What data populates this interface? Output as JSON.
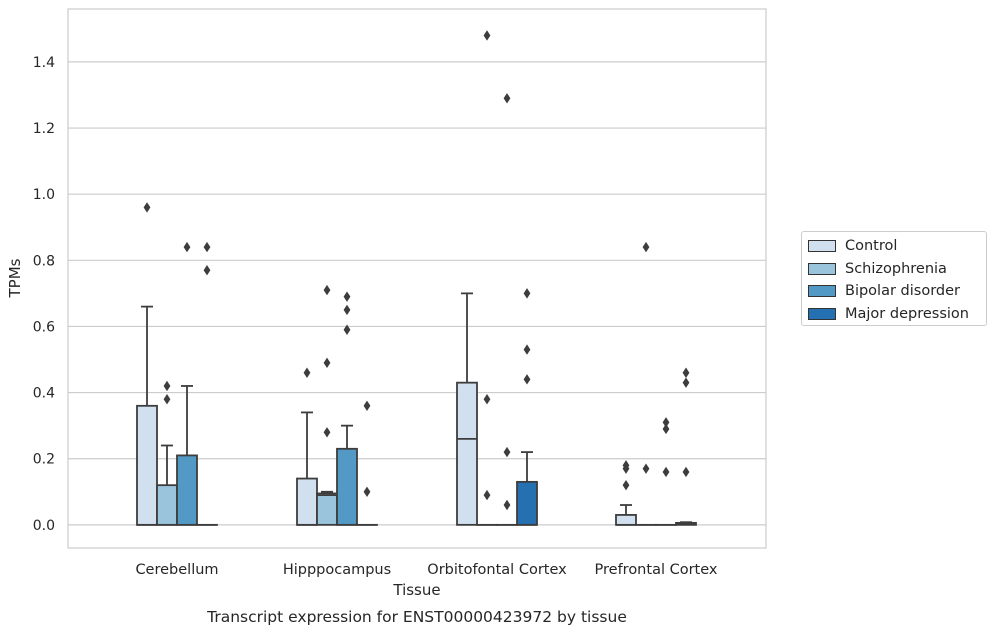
{
  "chart_data": {
    "type": "box",
    "title": "Transcript expression for ENST00000423972 by tissue",
    "xlabel": "Tissue",
    "ylabel": "TPMs",
    "ylim": [
      -0.07,
      1.56
    ],
    "yticks": [
      0.0,
      0.2,
      0.4,
      0.6,
      0.8,
      1.0,
      1.2,
      1.4
    ],
    "ytick_labels": [
      "0.0",
      "0.2",
      "0.4",
      "0.6",
      "0.8",
      "1.0",
      "1.2",
      "1.4"
    ],
    "grid": true,
    "legend_position": "right",
    "categories": [
      "Cerebellum",
      "Hipppocampus",
      "Orbitofontal Cortex",
      "Prefrontal Cortex"
    ],
    "series": [
      {
        "name": "Control",
        "color": "#d0e0ef",
        "boxes": [
          {
            "category": "Cerebellum",
            "q1": 0,
            "median": 0,
            "q3": 0.36,
            "whisker_low": 0,
            "whisker_high": 0.66,
            "outliers": [
              0.96
            ]
          },
          {
            "category": "Hipppocampus",
            "q1": 0,
            "median": 0,
            "q3": 0.14,
            "whisker_low": 0,
            "whisker_high": 0.34,
            "outliers": [
              0.46
            ]
          },
          {
            "category": "Orbitofontal Cortex",
            "q1": 0,
            "median": 0.26,
            "q3": 0.43,
            "whisker_low": 0,
            "whisker_high": 0.7,
            "outliers": []
          },
          {
            "category": "Prefrontal Cortex",
            "q1": 0,
            "median": 0,
            "q3": 0.03,
            "whisker_low": 0,
            "whisker_high": 0.06,
            "outliers": [
              0.12,
              0.17,
              0.18
            ]
          }
        ]
      },
      {
        "name": "Schizophrenia",
        "color": "#9ac3dc",
        "boxes": [
          {
            "category": "Cerebellum",
            "q1": 0,
            "median": 0,
            "q3": 0.12,
            "whisker_low": 0,
            "whisker_high": 0.24,
            "outliers": [
              0.38,
              0.42
            ]
          },
          {
            "category": "Hipppocampus",
            "q1": 0,
            "median": 0.09,
            "q3": 0.095,
            "whisker_low": 0,
            "whisker_high": 0.1,
            "outliers": [
              0.28,
              0.49,
              0.71
            ]
          },
          {
            "category": "Orbitofontal Cortex",
            "q1": 0,
            "median": 0,
            "q3": 0,
            "whisker_low": 0,
            "whisker_high": 0,
            "outliers": [
              0.09,
              0.38,
              1.48
            ]
          },
          {
            "category": "Prefrontal Cortex",
            "q1": 0,
            "median": 0,
            "q3": 0,
            "whisker_low": 0,
            "whisker_high": 0,
            "outliers": [
              0.17,
              0.84
            ]
          }
        ]
      },
      {
        "name": "Bipolar disorder",
        "color": "#5399c6",
        "boxes": [
          {
            "category": "Cerebellum",
            "q1": 0,
            "median": 0,
            "q3": 0.21,
            "whisker_low": 0,
            "whisker_high": 0.42,
            "outliers": [
              0.84
            ]
          },
          {
            "category": "Hipppocampus",
            "q1": 0,
            "median": 0,
            "q3": 0.23,
            "whisker_low": 0,
            "whisker_high": 0.3,
            "outliers": [
              0.59,
              0.65,
              0.69
            ]
          },
          {
            "category": "Orbitofontal Cortex",
            "q1": 0,
            "median": 0,
            "q3": 0,
            "whisker_low": 0,
            "whisker_high": 0,
            "outliers": [
              0.06,
              0.22,
              1.29
            ]
          },
          {
            "category": "Prefrontal Cortex",
            "q1": 0,
            "median": 0,
            "q3": 0,
            "whisker_low": 0,
            "whisker_high": 0,
            "outliers": [
              0.16,
              0.29,
              0.31
            ]
          }
        ]
      },
      {
        "name": "Major depression",
        "color": "#2470b0",
        "boxes": [
          {
            "category": "Cerebellum",
            "q1": 0,
            "median": 0,
            "q3": 0,
            "whisker_low": 0,
            "whisker_high": 0,
            "outliers": [
              0.77,
              0.84
            ]
          },
          {
            "category": "Hipppocampus",
            "q1": 0,
            "median": 0,
            "q3": 0,
            "whisker_low": 0,
            "whisker_high": 0,
            "outliers": [
              0.1,
              0.36
            ]
          },
          {
            "category": "Orbitofontal Cortex",
            "q1": 0,
            "median": 0,
            "q3": 0.13,
            "whisker_low": 0,
            "whisker_high": 0.22,
            "outliers": [
              0.44,
              0.53,
              0.7
            ]
          },
          {
            "category": "Prefrontal Cortex",
            "q1": 0,
            "median": 0.003,
            "q3": 0.006,
            "whisker_low": 0,
            "whisker_high": 0.008,
            "outliers": [
              0.16,
              0.43,
              0.46
            ]
          }
        ]
      }
    ]
  }
}
